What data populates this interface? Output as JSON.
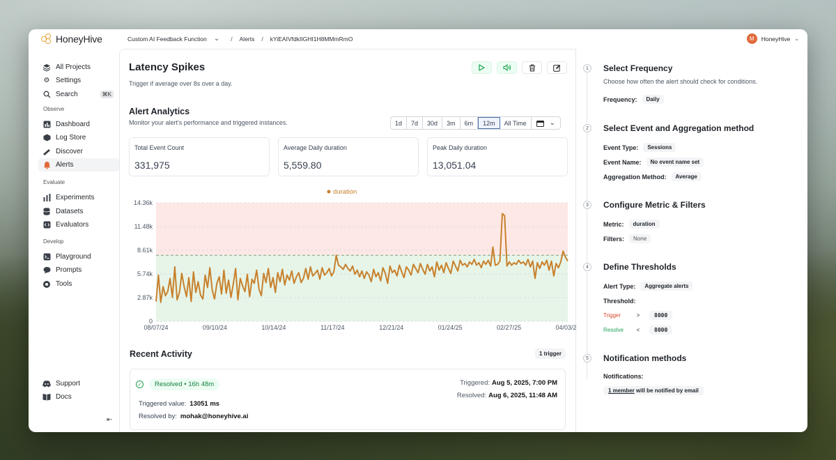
{
  "app": {
    "name": "HoneyHive",
    "user_initial": "M",
    "user_name": "HoneyHive"
  },
  "breadcrumb": {
    "project": "Custom AI Feedback Function",
    "section": "Alerts",
    "id": "kYiEAIVfdkIIGHI1H8MMmRmO"
  },
  "sidebar": {
    "top": [
      {
        "label": "All Projects",
        "icon": "layers-icon"
      },
      {
        "label": "Settings",
        "icon": "gear-icon"
      },
      {
        "label": "Search",
        "icon": "search-icon",
        "shortcut": "⌘K"
      }
    ],
    "sections": [
      {
        "title": "Observe",
        "items": [
          {
            "label": "Dashboard",
            "icon": "dashboard-icon"
          },
          {
            "label": "Log Store",
            "icon": "box-icon"
          },
          {
            "label": "Discover",
            "icon": "telescope-icon"
          },
          {
            "label": "Alerts",
            "icon": "bell-icon",
            "active": true
          }
        ]
      },
      {
        "title": "Evaluate",
        "items": [
          {
            "label": "Experiments",
            "icon": "bar-chart-icon"
          },
          {
            "label": "Datasets",
            "icon": "database-icon"
          },
          {
            "label": "Evaluators",
            "icon": "code-icon"
          }
        ]
      },
      {
        "title": "Develop",
        "items": [
          {
            "label": "Playground",
            "icon": "terminal-icon"
          },
          {
            "label": "Prompts",
            "icon": "chat-icon"
          },
          {
            "label": "Tools",
            "icon": "tools-icon"
          }
        ]
      }
    ],
    "bottom": [
      {
        "label": "Support",
        "icon": "discord-icon"
      },
      {
        "label": "Docs",
        "icon": "book-icon"
      }
    ]
  },
  "alert": {
    "title": "Latency Spikes",
    "description": "Trigger if average over 8s over a day."
  },
  "analytics": {
    "title": "Alert Analytics",
    "subtitle": "Monitor your alert's performance and triggered instances.",
    "ranges": [
      "1d",
      "7d",
      "30d",
      "3m",
      "6m",
      "12m",
      "All Time"
    ],
    "selected_range": "12m",
    "stats": [
      {
        "label": "Total Event Count",
        "value": "331,975"
      },
      {
        "label": "Average Daily duration",
        "value": "5,559.80"
      },
      {
        "label": "Peak Daily duration",
        "value": "13,051.04"
      }
    ]
  },
  "chart_data": {
    "type": "line",
    "legend": "duration",
    "series": [
      {
        "name": "duration",
        "color": "#c8802c"
      }
    ],
    "x_ticks": [
      "08/07/24",
      "09/10/24",
      "10/14/24",
      "11/17/24",
      "12/21/24",
      "01/24/25",
      "02/27/25",
      "04/03/25"
    ],
    "y_ticks": [
      "0",
      "2.87k",
      "5.74k",
      "8.61k",
      "11.48k",
      "14.36k"
    ],
    "ylim": [
      0,
      14360
    ],
    "threshold_trigger": 8000,
    "zones": {
      "trigger_color": "#fde8e6",
      "resolve_color": "#e6f5e8"
    },
    "values": [
      2400,
      5600,
      2300,
      4200,
      3100,
      3600,
      5200,
      2900,
      6600,
      2600,
      3500,
      5800,
      4200,
      3000,
      5300,
      2400,
      6000,
      3500,
      4800,
      3200,
      2700,
      5600,
      4100,
      6500,
      3800,
      2700,
      4600,
      5400,
      3300,
      6200,
      3400,
      5000,
      2900,
      4500,
      6400,
      2600,
      5200,
      4300,
      3600,
      5700,
      3000,
      5100,
      4600,
      6200,
      3900,
      3100,
      5800,
      4700,
      6400,
      4100,
      5300,
      3500,
      5900,
      4800,
      6300,
      4400,
      5600,
      5000,
      6100,
      4600,
      5400,
      5900,
      4700,
      5200,
      6400,
      5100,
      6600,
      5500,
      5800,
      6200,
      5100,
      6500,
      5600,
      5900,
      6400,
      5500,
      6000,
      8000,
      6800,
      6600,
      6300,
      6900,
      6400,
      6100,
      6700,
      5700,
      6200,
      5400,
      6100,
      5200,
      6000,
      5600,
      4800,
      6300,
      5400,
      5900,
      4900,
      6500,
      5800,
      4600,
      6700,
      5900,
      6200,
      5500,
      6800,
      6000,
      5300,
      6600,
      6200,
      5600,
      6900,
      6400,
      5900,
      7000,
      6300,
      5700,
      6900,
      6100,
      6600,
      5400,
      7200,
      6200,
      6800,
      5900,
      7100,
      6400,
      5800,
      7300,
      6700,
      6100,
      7400,
      6800,
      7000,
      6600,
      7200,
      6900,
      7500,
      6800,
      7100,
      6500,
      7300,
      6900,
      7400,
      6700,
      9000,
      6800,
      6900,
      7300,
      13051,
      12800,
      6700,
      7200,
      6800,
      7100,
      6900,
      7400,
      7000,
      7200,
      6800,
      7500,
      6600,
      7300,
      5200,
      7100,
      6400,
      7200,
      6800,
      7400,
      6200,
      7300,
      5500,
      7000,
      6500,
      7200,
      8500,
      7800,
      7300
    ]
  },
  "recent": {
    "title": "Recent Activity",
    "badge": "1 trigger",
    "status": "Resolved • 16h 48m",
    "triggered_value_label": "Triggered value:",
    "triggered_value": "13051 ms",
    "resolved_by_label": "Resolved by:",
    "resolved_by": "mohak@honeyhive.ai",
    "triggered_label": "Triggered:",
    "triggered_at": "Aug 5, 2025, 7:00 PM",
    "resolved_label": "Resolved:",
    "resolved_at": "Aug 6, 2025, 11:48 AM"
  },
  "panel": {
    "steps": [
      {
        "num": "1",
        "title": "Select Frequency",
        "text": "Choose how often the alert should check for conditions.",
        "frequency_label": "Frequency:",
        "frequency": "Daily"
      },
      {
        "num": "2",
        "title": "Select Event and Aggregation method",
        "event_type_label": "Event Type:",
        "event_type": "Sessions",
        "event_name_label": "Event Name:",
        "event_name": "No event name set",
        "aggregation_label": "Aggregation Method:",
        "aggregation": "Average"
      },
      {
        "num": "3",
        "title": "Configure Metric & Filters",
        "metric_label": "Metric:",
        "metric": "duration",
        "filters_label": "Filters:",
        "filters": "None"
      },
      {
        "num": "4",
        "title": "Define Thresholds",
        "alert_type_label": "Alert Type:",
        "alert_type": "Aggregate alerts",
        "threshold_label": "Threshold:",
        "trigger_label": "Trigger",
        "trigger_op": ">",
        "trigger_value": "8000",
        "resolve_label": "Resolve",
        "resolve_op": "<",
        "resolve_value": "8000"
      },
      {
        "num": "5",
        "title": "Notification methods",
        "notifications_label": "Notifications:",
        "notify_member": "1 member",
        "notify_rest": "will be notified by email"
      }
    ]
  },
  "colors": {
    "accent": "#c8802c",
    "trigger": "#d6492f",
    "resolve": "#22a354",
    "brand": "#e8a33c"
  }
}
